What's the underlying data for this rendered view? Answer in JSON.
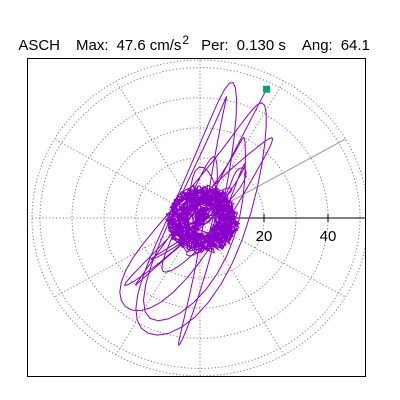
{
  "header": {
    "station": "ASCH",
    "max_label": "Max:",
    "max_value": "47.6",
    "max_unit": "cm/s",
    "max_unit_exp": "2",
    "per_label": "Per:",
    "per_value": "0.130 s",
    "ang_label": "Ang:",
    "ang_value": "64.1"
  },
  "chart_data": {
    "type": "polar-hodogram",
    "radial_ticks": [
      20,
      40
    ],
    "radial_max": 47.6,
    "angle_deg": 64.1,
    "grid": "dotted",
    "colors": {
      "trace": "#8a00c8",
      "marker": "#00a87a",
      "grid": "#808080",
      "axis": "#000000"
    }
  }
}
